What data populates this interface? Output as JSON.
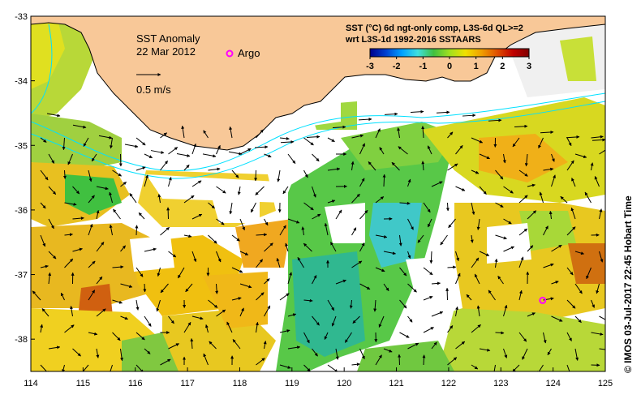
{
  "map": {
    "title": "SST Anomaly",
    "date": "22 Mar 2012",
    "argo_label": "Argo",
    "scale_label": "0.5 m/s",
    "product_line1": "SST (°C) 6d ngt-only comp, L3S-6d QL>=2",
    "product_line2": "wrt L3S-1d 1992-2016 SSTAARS",
    "colorbar": {
      "ticks": [
        "-3",
        "-2",
        "-1",
        "0",
        "1",
        "2",
        "3"
      ],
      "colors": [
        "#00008b",
        "#0040d0",
        "#00a0ff",
        "#40e0e0",
        "#40c040",
        "#a0e020",
        "#f0e000",
        "#f0a000",
        "#e05000",
        "#c00000",
        "#800000"
      ]
    },
    "credit": "© IMOS 03-Jul-2017 22:45 Hobart Time",
    "x_ticks": [
      "114",
      "115",
      "116",
      "117",
      "118",
      "119",
      "120",
      "121",
      "122",
      "123",
      "124",
      "125"
    ],
    "y_ticks": [
      "-33",
      "-34",
      "-35",
      "-36",
      "-37",
      "-38"
    ],
    "land_color": "#f8c898",
    "argo_float": {
      "lon": 123.8,
      "lat": -37.4
    }
  }
}
